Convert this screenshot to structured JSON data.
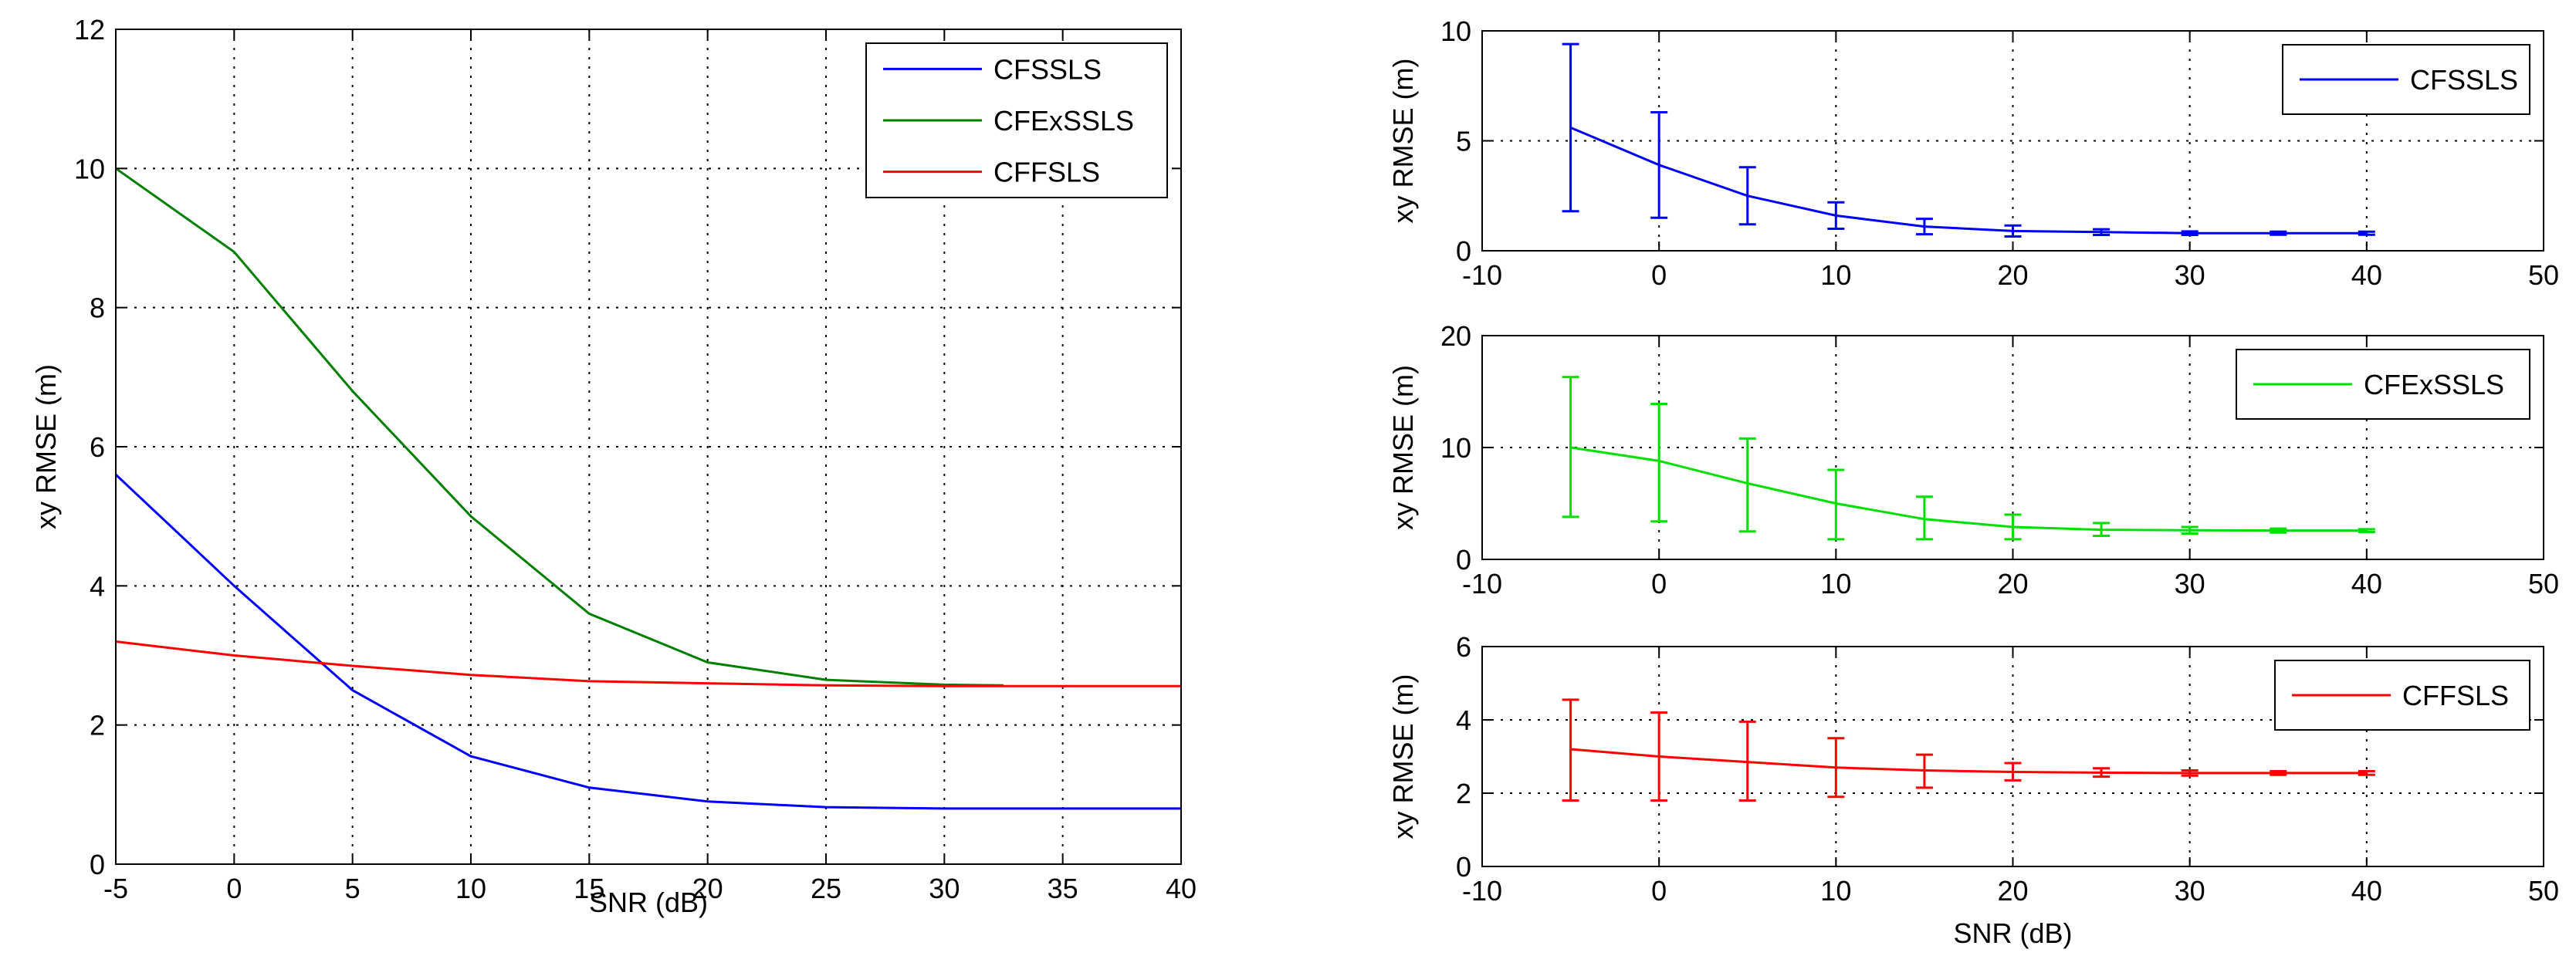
{
  "chart_data": [
    {
      "type": "line",
      "xlabel": "SNR (dB)",
      "ylabel": "xy RMSE (m)",
      "xlim": [
        -5,
        40
      ],
      "ylim": [
        0,
        12
      ],
      "xticks": [
        -5,
        0,
        5,
        10,
        15,
        20,
        25,
        30,
        35,
        40
      ],
      "yticks": [
        0,
        2,
        4,
        6,
        8,
        10,
        12
      ],
      "xtick_labels": [
        "-5",
        "0",
        "5",
        "10",
        "15",
        "20",
        "25",
        "30",
        "35",
        "40"
      ],
      "ytick_labels": [
        "0",
        "2",
        "4",
        "6",
        "8",
        "10",
        "12"
      ],
      "grid": true,
      "legend": "top-right",
      "series": [
        {
          "name": "CFSSLS",
          "color": "#0000ff",
          "x": [
            -5,
            0,
            5,
            10,
            15,
            20,
            25,
            30,
            35,
            40
          ],
          "values": [
            5.6,
            4.0,
            2.5,
            1.55,
            1.1,
            0.9,
            0.82,
            0.8,
            0.8,
            0.8
          ]
        },
        {
          "name": "CFExSSLS",
          "color": "#008000",
          "x": [
            -5,
            0,
            5,
            10,
            15,
            20,
            25,
            30,
            32.5
          ],
          "values": [
            10.0,
            8.8,
            6.8,
            5.0,
            3.6,
            2.9,
            2.65,
            2.58,
            2.57
          ]
        },
        {
          "name": "CFFSLS",
          "color": "#ff0000",
          "x": [
            -5,
            0,
            5,
            10,
            15,
            20,
            25,
            30,
            35,
            40
          ],
          "values": [
            3.2,
            3.0,
            2.85,
            2.72,
            2.63,
            2.6,
            2.57,
            2.56,
            2.56,
            2.56
          ]
        }
      ]
    },
    {
      "type": "line",
      "xlabel": "",
      "ylabel": "xy RMSE (m)",
      "xlim": [
        -10,
        50
      ],
      "ylim": [
        0,
        10
      ],
      "xticks": [
        -10,
        0,
        10,
        20,
        30,
        40,
        50
      ],
      "yticks": [
        0,
        5,
        10
      ],
      "xtick_labels": [
        "-10",
        "0",
        "10",
        "20",
        "30",
        "40",
        "50"
      ],
      "ytick_labels": [
        "0",
        "5",
        "10"
      ],
      "grid": true,
      "legend": "top-right",
      "series": [
        {
          "name": "CFSSLS",
          "color": "#0000ff",
          "x": [
            -5,
            0,
            5,
            10,
            15,
            20,
            25,
            30,
            35,
            40
          ],
          "values": [
            5.6,
            3.9,
            2.5,
            1.6,
            1.1,
            0.9,
            0.85,
            0.8,
            0.8,
            0.8
          ],
          "err_low": [
            1.8,
            1.5,
            1.2,
            1.0,
            0.75,
            0.65,
            0.72,
            0.72,
            0.73,
            0.73
          ],
          "err_high": [
            9.4,
            6.3,
            3.8,
            2.2,
            1.45,
            1.15,
            0.98,
            0.88,
            0.87,
            0.87
          ]
        }
      ]
    },
    {
      "type": "line",
      "xlabel": "",
      "ylabel": "xy RMSE (m)",
      "xlim": [
        -10,
        50
      ],
      "ylim": [
        0,
        20
      ],
      "xticks": [
        -10,
        0,
        10,
        20,
        30,
        40,
        50
      ],
      "yticks": [
        0,
        10,
        20
      ],
      "xtick_labels": [
        "-10",
        "0",
        "10",
        "20",
        "30",
        "40",
        "50"
      ],
      "ytick_labels": [
        "0",
        "10",
        "20"
      ],
      "grid": true,
      "legend": "top-right",
      "series": [
        {
          "name": "CFExSSLS",
          "color": "#00e000",
          "x": [
            -5,
            0,
            5,
            10,
            15,
            20,
            25,
            30,
            35,
            40
          ],
          "values": [
            10.0,
            8.8,
            6.8,
            5.0,
            3.6,
            2.9,
            2.65,
            2.6,
            2.58,
            2.57
          ],
          "err_low": [
            3.8,
            3.4,
            2.5,
            1.8,
            1.8,
            1.8,
            2.1,
            2.3,
            2.4,
            2.45
          ],
          "err_high": [
            16.3,
            13.9,
            10.8,
            8.0,
            5.6,
            4.0,
            3.25,
            2.9,
            2.75,
            2.7
          ]
        }
      ]
    },
    {
      "type": "line",
      "xlabel": "SNR (dB)",
      "ylabel": "xy RMSE (m)",
      "xlim": [
        -10,
        50
      ],
      "ylim": [
        0,
        6
      ],
      "xticks": [
        -10,
        0,
        10,
        20,
        30,
        40,
        50
      ],
      "yticks": [
        0,
        2,
        4,
        6
      ],
      "xtick_labels": [
        "-10",
        "0",
        "10",
        "20",
        "30",
        "40",
        "50"
      ],
      "ytick_labels": [
        "0",
        "2",
        "4",
        "6"
      ],
      "grid": true,
      "legend": "top-right",
      "series": [
        {
          "name": "CFFSLS",
          "color": "#ff0000",
          "x": [
            -5,
            0,
            5,
            10,
            15,
            20,
            25,
            30,
            35,
            40
          ],
          "values": [
            3.2,
            3.0,
            2.85,
            2.7,
            2.62,
            2.58,
            2.56,
            2.55,
            2.55,
            2.55
          ],
          "err_low": [
            1.8,
            1.8,
            1.8,
            1.9,
            2.15,
            2.35,
            2.45,
            2.48,
            2.5,
            2.5
          ],
          "err_high": [
            4.55,
            4.2,
            3.95,
            3.5,
            3.05,
            2.82,
            2.68,
            2.62,
            2.6,
            2.6
          ]
        }
      ]
    }
  ]
}
